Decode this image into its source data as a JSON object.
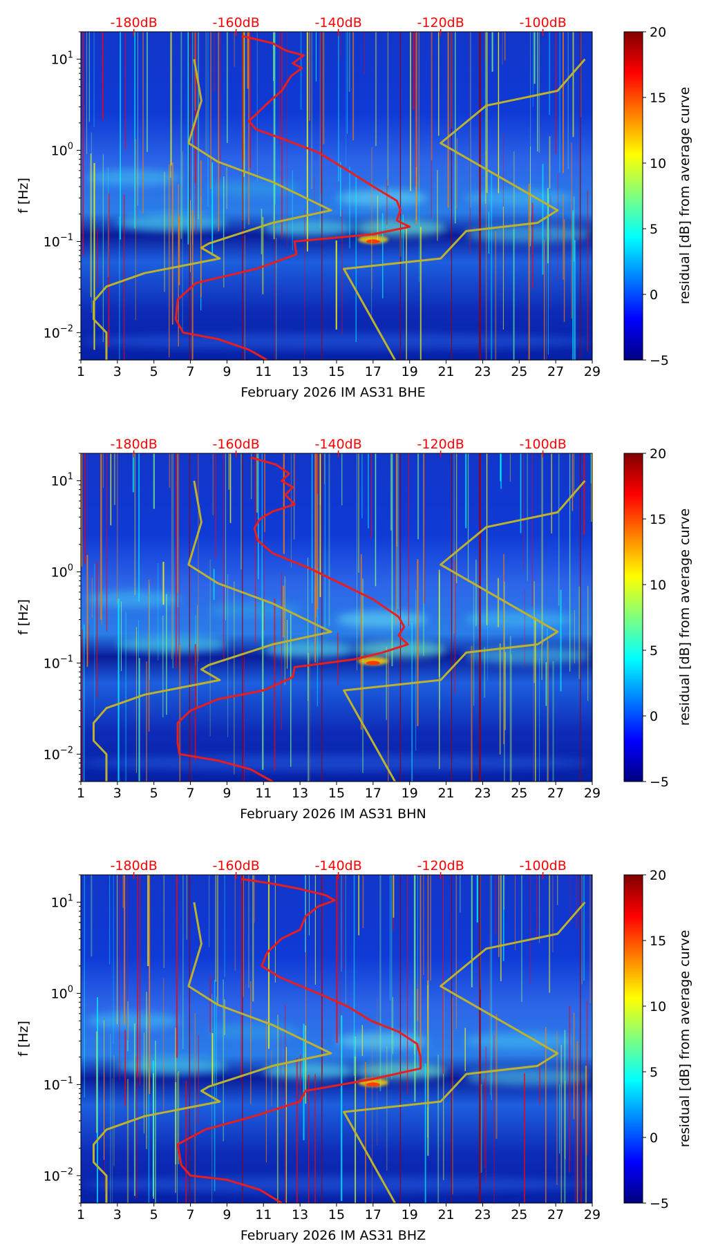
{
  "chart_data": [
    {
      "type": "heatmap",
      "title": "",
      "xlabel": "February 2026 IM AS31  BHE",
      "ylabel": "f [Hz]",
      "xlim": [
        1,
        29
      ],
      "xticks": [
        "1",
        "3",
        "5",
        "7",
        "9",
        "11",
        "13",
        "15",
        "17",
        "19",
        "21",
        "23",
        "25",
        "27",
        "29"
      ],
      "ylim": [
        0.005,
        20
      ],
      "yticks": [
        "10^-2",
        "10^-1",
        "10^0",
        "10^1"
      ],
      "top_axis_labels": [
        "-180dB",
        "-160dB",
        "-140dB",
        "-120dB",
        "-100dB"
      ],
      "colorbar_label": "residual [dB] from average curve",
      "colorbar_ticks": [
        "20",
        "15",
        "10",
        "5",
        "0",
        "−5"
      ],
      "colorbar_range": [
        -5,
        20
      ],
      "series": [
        {
          "name": "low noise model",
          "color": "#bdb22f",
          "points": [
            [
              7.2,
              10
            ],
            [
              7.6,
              3.5
            ],
            [
              6.9,
              1.2
            ],
            [
              8.5,
              0.75
            ],
            [
              11.5,
              0.45
            ],
            [
              14.7,
              0.22
            ],
            [
              11.5,
              0.16
            ],
            [
              8.0,
              0.095
            ],
            [
              7.6,
              0.085
            ],
            [
              8.6,
              0.065
            ],
            [
              4.5,
              0.045
            ],
            [
              2.4,
              0.032
            ],
            [
              1.7,
              0.022
            ],
            [
              1.7,
              0.014
            ],
            [
              2.4,
              0.01
            ],
            [
              2.4,
              0.005
            ]
          ]
        },
        {
          "name": "high noise model",
          "color": "#bdb22f",
          "points": [
            [
              28.6,
              10
            ],
            [
              27.1,
              4.5
            ],
            [
              23.2,
              3.1
            ],
            [
              20.7,
              1.2
            ],
            [
              27.1,
              0.22
            ],
            [
              26.0,
              0.16
            ],
            [
              22.1,
              0.13
            ],
            [
              20.7,
              0.065
            ],
            [
              15.4,
              0.05
            ],
            [
              18.2,
              0.005
            ]
          ]
        },
        {
          "name": "average PSD curve",
          "color": "#e81e1e",
          "points": [
            [
              9.8,
              18
            ],
            [
              11.5,
              15
            ],
            [
              12.2,
              12.5
            ],
            [
              13.2,
              11
            ],
            [
              12.6,
              9
            ],
            [
              13.1,
              8
            ],
            [
              12.5,
              6.5
            ],
            [
              12.0,
              4.5
            ],
            [
              11.3,
              3.4
            ],
            [
              10.7,
              2.6
            ],
            [
              10.2,
              2.1
            ],
            [
              10.6,
              1.7
            ],
            [
              12.0,
              1.35
            ],
            [
              14.0,
              0.95
            ],
            [
              15.5,
              0.62
            ],
            [
              17.2,
              0.38
            ],
            [
              18.3,
              0.28
            ],
            [
              18.5,
              0.22
            ],
            [
              18.3,
              0.17
            ],
            [
              19.0,
              0.145
            ],
            [
              17.0,
              0.12
            ],
            [
              12.7,
              0.1
            ],
            [
              12.8,
              0.072
            ],
            [
              10.6,
              0.05
            ],
            [
              7.3,
              0.035
            ],
            [
              6.3,
              0.023
            ],
            [
              6.2,
              0.014
            ],
            [
              6.6,
              0.01
            ],
            [
              8.5,
              0.0085
            ],
            [
              10.2,
              0.0065
            ],
            [
              11.2,
              0.005
            ]
          ]
        }
      ]
    },
    {
      "type": "heatmap",
      "title": "",
      "xlabel": "February 2026 IM AS31  BHN",
      "ylabel": "f [Hz]",
      "xlim": [
        1,
        29
      ],
      "xticks": [
        "1",
        "3",
        "5",
        "7",
        "9",
        "11",
        "13",
        "15",
        "17",
        "19",
        "21",
        "23",
        "25",
        "27",
        "29"
      ],
      "ylim": [
        0.005,
        20
      ],
      "yticks": [
        "10^-2",
        "10^-1",
        "10^0",
        "10^1"
      ],
      "top_axis_labels": [
        "-180dB",
        "-160dB",
        "-140dB",
        "-120dB",
        "-100dB"
      ],
      "colorbar_label": "residual [dB] from average curve",
      "colorbar_ticks": [
        "20",
        "15",
        "10",
        "5",
        "0",
        "−5"
      ],
      "colorbar_range": [
        -5,
        20
      ],
      "series": [
        {
          "name": "low noise model",
          "color": "#bdb22f",
          "points": [
            [
              7.2,
              10
            ],
            [
              7.6,
              3.5
            ],
            [
              6.9,
              1.2
            ],
            [
              8.5,
              0.75
            ],
            [
              11.5,
              0.45
            ],
            [
              14.7,
              0.22
            ],
            [
              11.5,
              0.16
            ],
            [
              8.0,
              0.095
            ],
            [
              7.6,
              0.085
            ],
            [
              8.6,
              0.065
            ],
            [
              4.5,
              0.045
            ],
            [
              2.4,
              0.032
            ],
            [
              1.7,
              0.022
            ],
            [
              1.7,
              0.014
            ],
            [
              2.4,
              0.01
            ],
            [
              2.4,
              0.005
            ]
          ]
        },
        {
          "name": "high noise model",
          "color": "#bdb22f",
          "points": [
            [
              28.6,
              10
            ],
            [
              27.1,
              4.5
            ],
            [
              23.2,
              3.1
            ],
            [
              20.7,
              1.2
            ],
            [
              27.1,
              0.22
            ],
            [
              26.0,
              0.16
            ],
            [
              22.1,
              0.13
            ],
            [
              20.7,
              0.065
            ],
            [
              15.4,
              0.05
            ],
            [
              18.2,
              0.005
            ]
          ]
        },
        {
          "name": "average PSD curve",
          "color": "#e81e1e",
          "points": [
            [
              10.3,
              18
            ],
            [
              11.7,
              15
            ],
            [
              12.4,
              12
            ],
            [
              12.0,
              10
            ],
            [
              12.6,
              8.5
            ],
            [
              12.2,
              7
            ],
            [
              12.7,
              5.5
            ],
            [
              11.5,
              4.6
            ],
            [
              10.8,
              3.8
            ],
            [
              10.5,
              3.0
            ],
            [
              10.7,
              2.2
            ],
            [
              11.5,
              1.6
            ],
            [
              13.5,
              1.1
            ],
            [
              15.2,
              0.75
            ],
            [
              17.0,
              0.5
            ],
            [
              18.4,
              0.32
            ],
            [
              18.7,
              0.25
            ],
            [
              18.4,
              0.2
            ],
            [
              18.9,
              0.16
            ],
            [
              17.5,
              0.13
            ],
            [
              16.0,
              0.11
            ],
            [
              12.7,
              0.09
            ],
            [
              12.6,
              0.07
            ],
            [
              11.0,
              0.05
            ],
            [
              8.5,
              0.04
            ],
            [
              7.0,
              0.03
            ],
            [
              6.3,
              0.022
            ],
            [
              6.3,
              0.013
            ],
            [
              6.4,
              0.01
            ],
            [
              8.5,
              0.0085
            ],
            [
              10.3,
              0.0068
            ],
            [
              11.5,
              0.005
            ]
          ]
        }
      ]
    },
    {
      "type": "heatmap",
      "title": "",
      "xlabel": "February 2026 IM AS31  BHZ",
      "ylabel": "f [Hz]",
      "xlim": [
        1,
        29
      ],
      "xticks": [
        "1",
        "3",
        "5",
        "7",
        "9",
        "11",
        "13",
        "15",
        "17",
        "19",
        "21",
        "23",
        "25",
        "27",
        "29"
      ],
      "ylim": [
        0.005,
        20
      ],
      "yticks": [
        "10^-2",
        "10^-1",
        "10^0",
        "10^1"
      ],
      "top_axis_labels": [
        "-180dB",
        "-160dB",
        "-140dB",
        "-120dB",
        "-100dB"
      ],
      "colorbar_label": "residual [dB] from average curve",
      "colorbar_ticks": [
        "20",
        "15",
        "10",
        "5",
        "0",
        "−5"
      ],
      "colorbar_range": [
        -5,
        20
      ],
      "series": [
        {
          "name": "low noise model",
          "color": "#bdb22f",
          "points": [
            [
              7.2,
              10
            ],
            [
              7.6,
              3.5
            ],
            [
              6.9,
              1.2
            ],
            [
              8.5,
              0.75
            ],
            [
              11.5,
              0.45
            ],
            [
              14.7,
              0.22
            ],
            [
              11.5,
              0.16
            ],
            [
              8.0,
              0.095
            ],
            [
              7.6,
              0.085
            ],
            [
              8.6,
              0.065
            ],
            [
              4.5,
              0.045
            ],
            [
              2.4,
              0.032
            ],
            [
              1.7,
              0.022
            ],
            [
              1.7,
              0.014
            ],
            [
              2.4,
              0.01
            ],
            [
              2.4,
              0.005
            ]
          ]
        },
        {
          "name": "high noise model",
          "color": "#bdb22f",
          "points": [
            [
              28.6,
              10
            ],
            [
              27.1,
              4.5
            ],
            [
              23.2,
              3.1
            ],
            [
              20.7,
              1.2
            ],
            [
              27.1,
              0.22
            ],
            [
              26.0,
              0.16
            ],
            [
              22.1,
              0.13
            ],
            [
              20.7,
              0.065
            ],
            [
              15.4,
              0.05
            ],
            [
              18.2,
              0.005
            ]
          ]
        },
        {
          "name": "average PSD curve",
          "color": "#e81e1e",
          "points": [
            [
              9.8,
              18
            ],
            [
              11.5,
              16
            ],
            [
              13.0,
              14
            ],
            [
              14.4,
              12
            ],
            [
              14.9,
              10.5
            ],
            [
              14.0,
              9
            ],
            [
              13.3,
              7
            ],
            [
              13.0,
              5
            ],
            [
              12.0,
              4
            ],
            [
              11.2,
              2.8
            ],
            [
              10.9,
              2.0
            ],
            [
              11.9,
              1.5
            ],
            [
              14.0,
              1.0
            ],
            [
              15.6,
              0.72
            ],
            [
              16.9,
              0.5
            ],
            [
              18.4,
              0.38
            ],
            [
              19.4,
              0.28
            ],
            [
              19.6,
              0.2
            ],
            [
              19.6,
              0.15
            ],
            [
              17.0,
              0.115
            ],
            [
              15.3,
              0.1
            ],
            [
              13.3,
              0.085
            ],
            [
              13.0,
              0.065
            ],
            [
              10.5,
              0.045
            ],
            [
              7.8,
              0.032
            ],
            [
              6.3,
              0.022
            ],
            [
              6.5,
              0.013
            ],
            [
              7.0,
              0.01
            ],
            [
              9.0,
              0.009
            ],
            [
              10.8,
              0.007
            ],
            [
              12.0,
              0.005
            ]
          ]
        }
      ]
    }
  ]
}
